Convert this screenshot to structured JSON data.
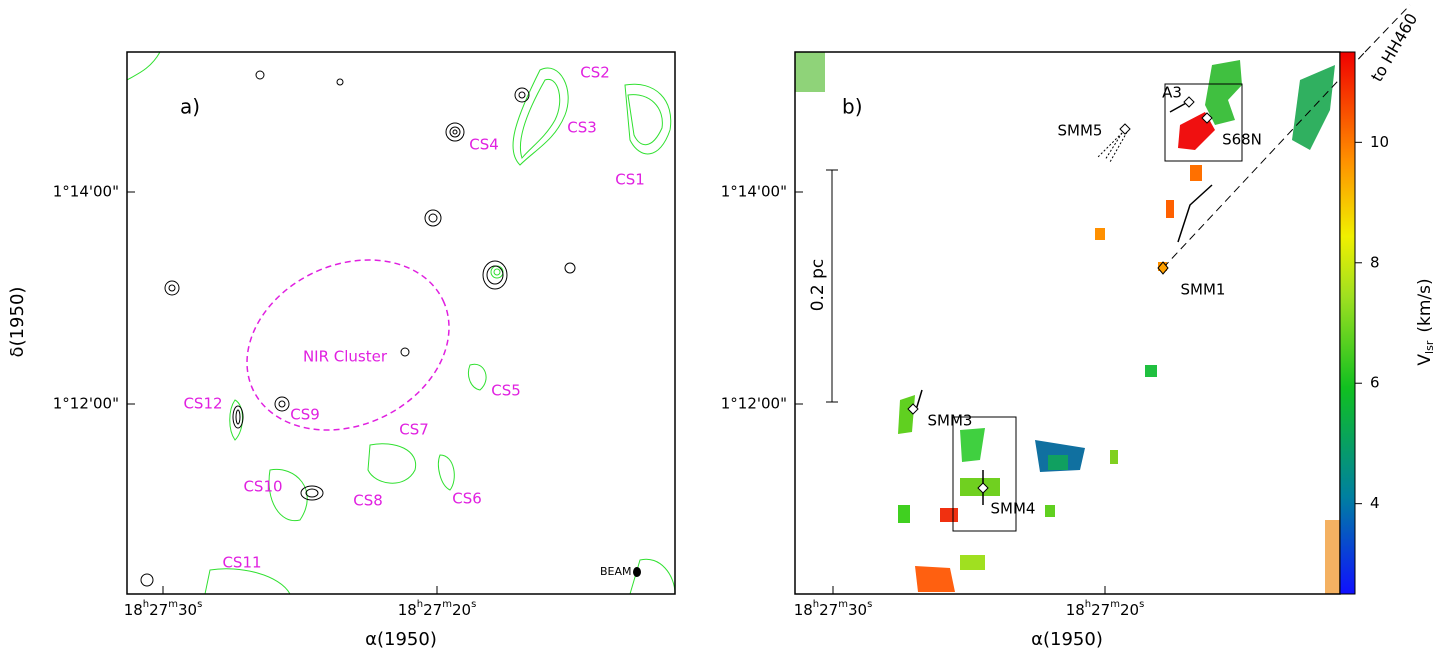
{
  "panel_a": {
    "label": "a)",
    "x_axis_label": "α(1950)",
    "y_axis_label": "δ(1950)",
    "x_ticks": [
      [
        "18",
        "h",
        "27",
        "m",
        "30",
        "s"
      ],
      [
        "18",
        "h",
        "27",
        "m",
        "20",
        "s"
      ]
    ],
    "y_ticks": [
      "1°14'00\"",
      "1°12'00\""
    ],
    "annotations": [
      "CS2",
      "CS3",
      "CS4",
      "CS1",
      "NIR Cluster",
      "CS12",
      "CS9",
      "CS5",
      "CS7",
      "CS10",
      "CS8",
      "CS6",
      "CS11"
    ],
    "beam_label": "BEAM"
  },
  "panel_b": {
    "label": "b)",
    "x_axis_label": "α(1950)",
    "x_ticks": [
      [
        "18",
        "h",
        "27",
        "m",
        "30",
        "s"
      ],
      [
        "18",
        "h",
        "27",
        "m",
        "20",
        "s"
      ]
    ],
    "y_ticks": [
      "1°14'00\"",
      "1°12'00\""
    ],
    "annotations": [
      "A3",
      "SMM5",
      "S68N",
      "SMM1",
      "SMM3",
      "SMM4"
    ],
    "scale_bar": "0.2 pc",
    "arrow_label": "to HH460",
    "colorbar": {
      "label": [
        "V",
        "lsr",
        "(km/s)"
      ],
      "lim": [
        2.5,
        11.5
      ],
      "ticks": [
        4,
        6,
        8,
        10
      ]
    }
  }
}
